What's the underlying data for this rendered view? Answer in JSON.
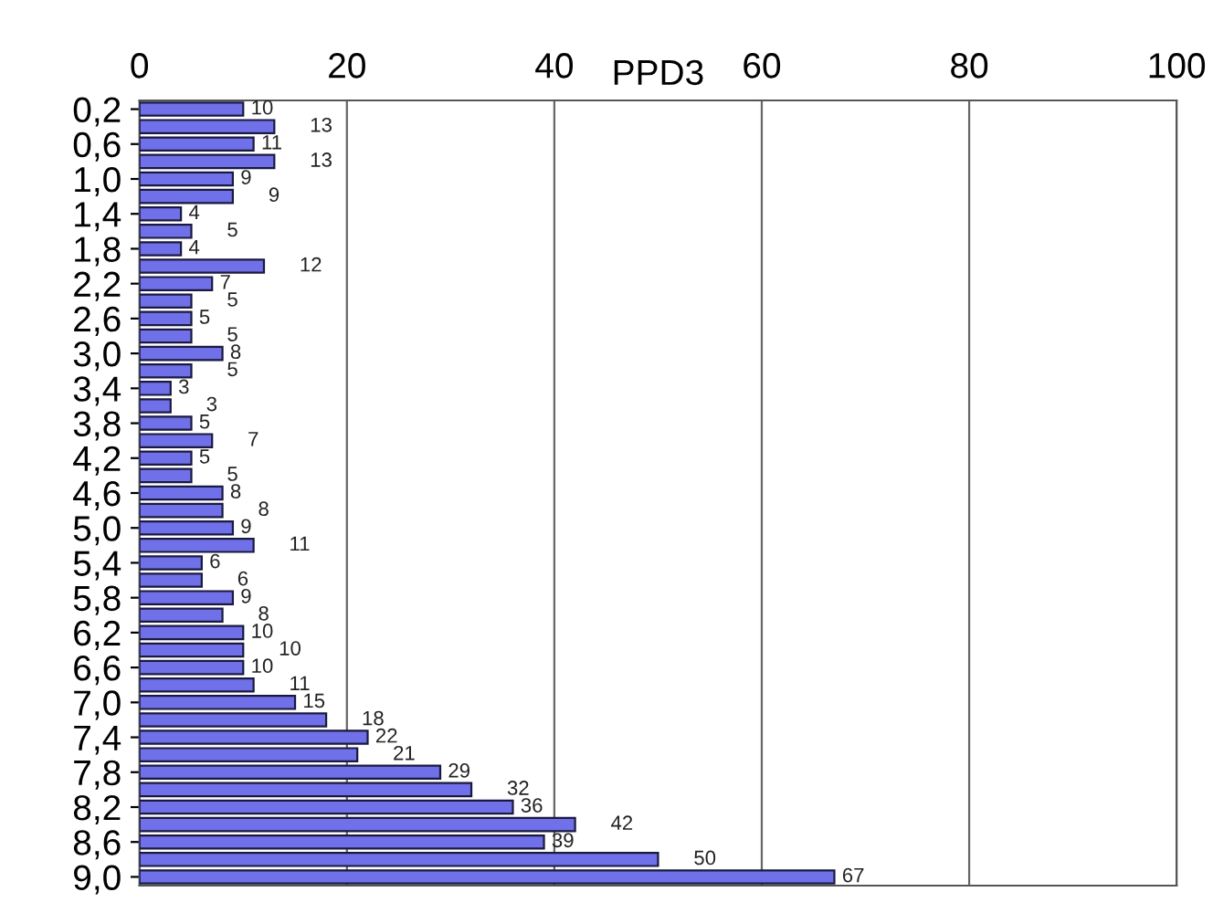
{
  "chart_data": {
    "type": "bar",
    "orientation": "horizontal",
    "xlabel": "PPD3",
    "categories": [
      "0,2",
      null,
      "0,6",
      null,
      "1,0",
      null,
      "1,4",
      null,
      "1,8",
      null,
      "2,2",
      null,
      "2,6",
      null,
      "3,0",
      null,
      "3,4",
      null,
      "3,8",
      null,
      "4,2",
      null,
      "4,6",
      null,
      "5,0",
      null,
      "5,4",
      null,
      "5,8",
      null,
      "6,2",
      null,
      "6,6",
      null,
      "7,0",
      null,
      "7,4",
      null,
      "7,8",
      null,
      "8,2",
      null,
      "8,6",
      null,
      "9,0"
    ],
    "values": [
      10,
      13,
      11,
      13,
      9,
      9,
      4,
      5,
      4,
      12,
      7,
      5,
      5,
      5,
      8,
      5,
      3,
      3,
      5,
      7,
      5,
      5,
      8,
      8,
      9,
      11,
      6,
      6,
      9,
      8,
      10,
      10,
      10,
      11,
      15,
      18,
      22,
      21,
      29,
      32,
      36,
      42,
      39,
      50,
      67
    ],
    "color": "#7070e8",
    "data_labels": true,
    "xlim": [
      0,
      100
    ],
    "xticks": [
      0,
      20,
      40,
      60,
      80,
      100
    ],
    "grid": "x",
    "legend": false
  }
}
